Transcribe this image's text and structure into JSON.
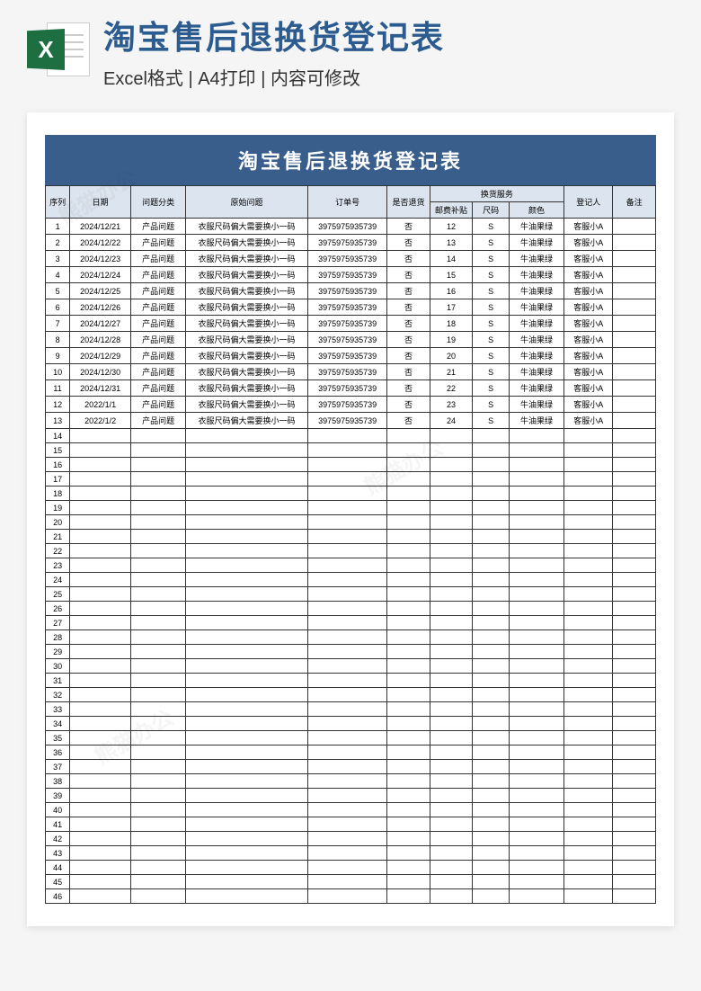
{
  "page": {
    "main_title": "淘宝售后退换货登记表",
    "sub_title": "Excel格式 | A4打印 | 内容可修改",
    "sheet_title": "淘宝售后退换货登记表",
    "excel_icon_letter": "X",
    "watermark_text": "熊猫办公"
  },
  "table": {
    "headers": {
      "seq": "序列",
      "date": "日期",
      "category": "问题分类",
      "issue": "原始问题",
      "order": "订单号",
      "is_return": "是否退货",
      "exchange_service": "换货服务",
      "subsidy": "邮费补贴",
      "size": "尺码",
      "color": "颜色",
      "registrar": "登记人",
      "note": "备注"
    },
    "total_rows": 46,
    "rows": [
      {
        "seq": "1",
        "date": "2024/12/21",
        "cat": "产品问题",
        "issue": "衣服尺码偏大需要换小一码",
        "order": "3975975935739",
        "ret": "否",
        "sub": "12",
        "size": "S",
        "color": "牛油果绿",
        "reg": "客服小A",
        "note": ""
      },
      {
        "seq": "2",
        "date": "2024/12/22",
        "cat": "产品问题",
        "issue": "衣服尺码偏大需要换小一码",
        "order": "3975975935739",
        "ret": "否",
        "sub": "13",
        "size": "S",
        "color": "牛油果绿",
        "reg": "客服小A",
        "note": ""
      },
      {
        "seq": "3",
        "date": "2024/12/23",
        "cat": "产品问题",
        "issue": "衣服尺码偏大需要换小一码",
        "order": "3975975935739",
        "ret": "否",
        "sub": "14",
        "size": "S",
        "color": "牛油果绿",
        "reg": "客服小A",
        "note": ""
      },
      {
        "seq": "4",
        "date": "2024/12/24",
        "cat": "产品问题",
        "issue": "衣服尺码偏大需要换小一码",
        "order": "3975975935739",
        "ret": "否",
        "sub": "15",
        "size": "S",
        "color": "牛油果绿",
        "reg": "客服小A",
        "note": ""
      },
      {
        "seq": "5",
        "date": "2024/12/25",
        "cat": "产品问题",
        "issue": "衣服尺码偏大需要换小一码",
        "order": "3975975935739",
        "ret": "否",
        "sub": "16",
        "size": "S",
        "color": "牛油果绿",
        "reg": "客服小A",
        "note": ""
      },
      {
        "seq": "6",
        "date": "2024/12/26",
        "cat": "产品问题",
        "issue": "衣服尺码偏大需要换小一码",
        "order": "3975975935739",
        "ret": "否",
        "sub": "17",
        "size": "S",
        "color": "牛油果绿",
        "reg": "客服小A",
        "note": ""
      },
      {
        "seq": "7",
        "date": "2024/12/27",
        "cat": "产品问题",
        "issue": "衣服尺码偏大需要换小一码",
        "order": "3975975935739",
        "ret": "否",
        "sub": "18",
        "size": "S",
        "color": "牛油果绿",
        "reg": "客服小A",
        "note": ""
      },
      {
        "seq": "8",
        "date": "2024/12/28",
        "cat": "产品问题",
        "issue": "衣服尺码偏大需要换小一码",
        "order": "3975975935739",
        "ret": "否",
        "sub": "19",
        "size": "S",
        "color": "牛油果绿",
        "reg": "客服小A",
        "note": ""
      },
      {
        "seq": "9",
        "date": "2024/12/29",
        "cat": "产品问题",
        "issue": "衣服尺码偏大需要换小一码",
        "order": "3975975935739",
        "ret": "否",
        "sub": "20",
        "size": "S",
        "color": "牛油果绿",
        "reg": "客服小A",
        "note": ""
      },
      {
        "seq": "10",
        "date": "2024/12/30",
        "cat": "产品问题",
        "issue": "衣服尺码偏大需要换小一码",
        "order": "3975975935739",
        "ret": "否",
        "sub": "21",
        "size": "S",
        "color": "牛油果绿",
        "reg": "客服小A",
        "note": ""
      },
      {
        "seq": "11",
        "date": "2024/12/31",
        "cat": "产品问题",
        "issue": "衣服尺码偏大需要换小一码",
        "order": "3975975935739",
        "ret": "否",
        "sub": "22",
        "size": "S",
        "color": "牛油果绿",
        "reg": "客服小A",
        "note": ""
      },
      {
        "seq": "12",
        "date": "2022/1/1",
        "cat": "产品问题",
        "issue": "衣服尺码偏大需要换小一码",
        "order": "3975975935739",
        "ret": "否",
        "sub": "23",
        "size": "S",
        "color": "牛油果绿",
        "reg": "客服小A",
        "note": ""
      },
      {
        "seq": "13",
        "date": "2022/1/2",
        "cat": "产品问题",
        "issue": "衣服尺码偏大需要换小一码",
        "order": "3975975935739",
        "ret": "否",
        "sub": "24",
        "size": "S",
        "color": "牛油果绿",
        "reg": "客服小A",
        "note": ""
      }
    ]
  },
  "colors": {
    "title_color": "#2c5b8f",
    "banner_bg": "#3a5e8c",
    "header_bg": "#dce4ef",
    "excel_green": "#1d6f42",
    "border": "#333333"
  }
}
